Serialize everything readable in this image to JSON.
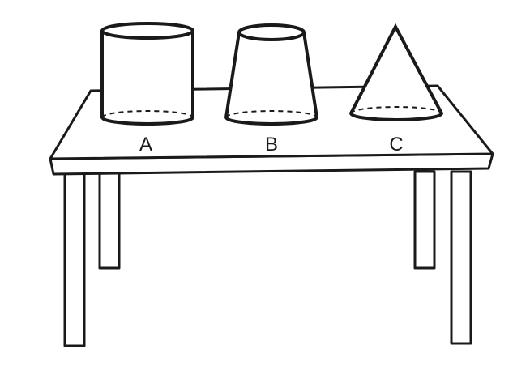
{
  "diagram": {
    "labels": {
      "a": "A",
      "b": "B",
      "c": "C"
    },
    "colors": {
      "stroke": "#1a1a1a",
      "fill": "#ffffff",
      "background": "#ffffff"
    }
  }
}
